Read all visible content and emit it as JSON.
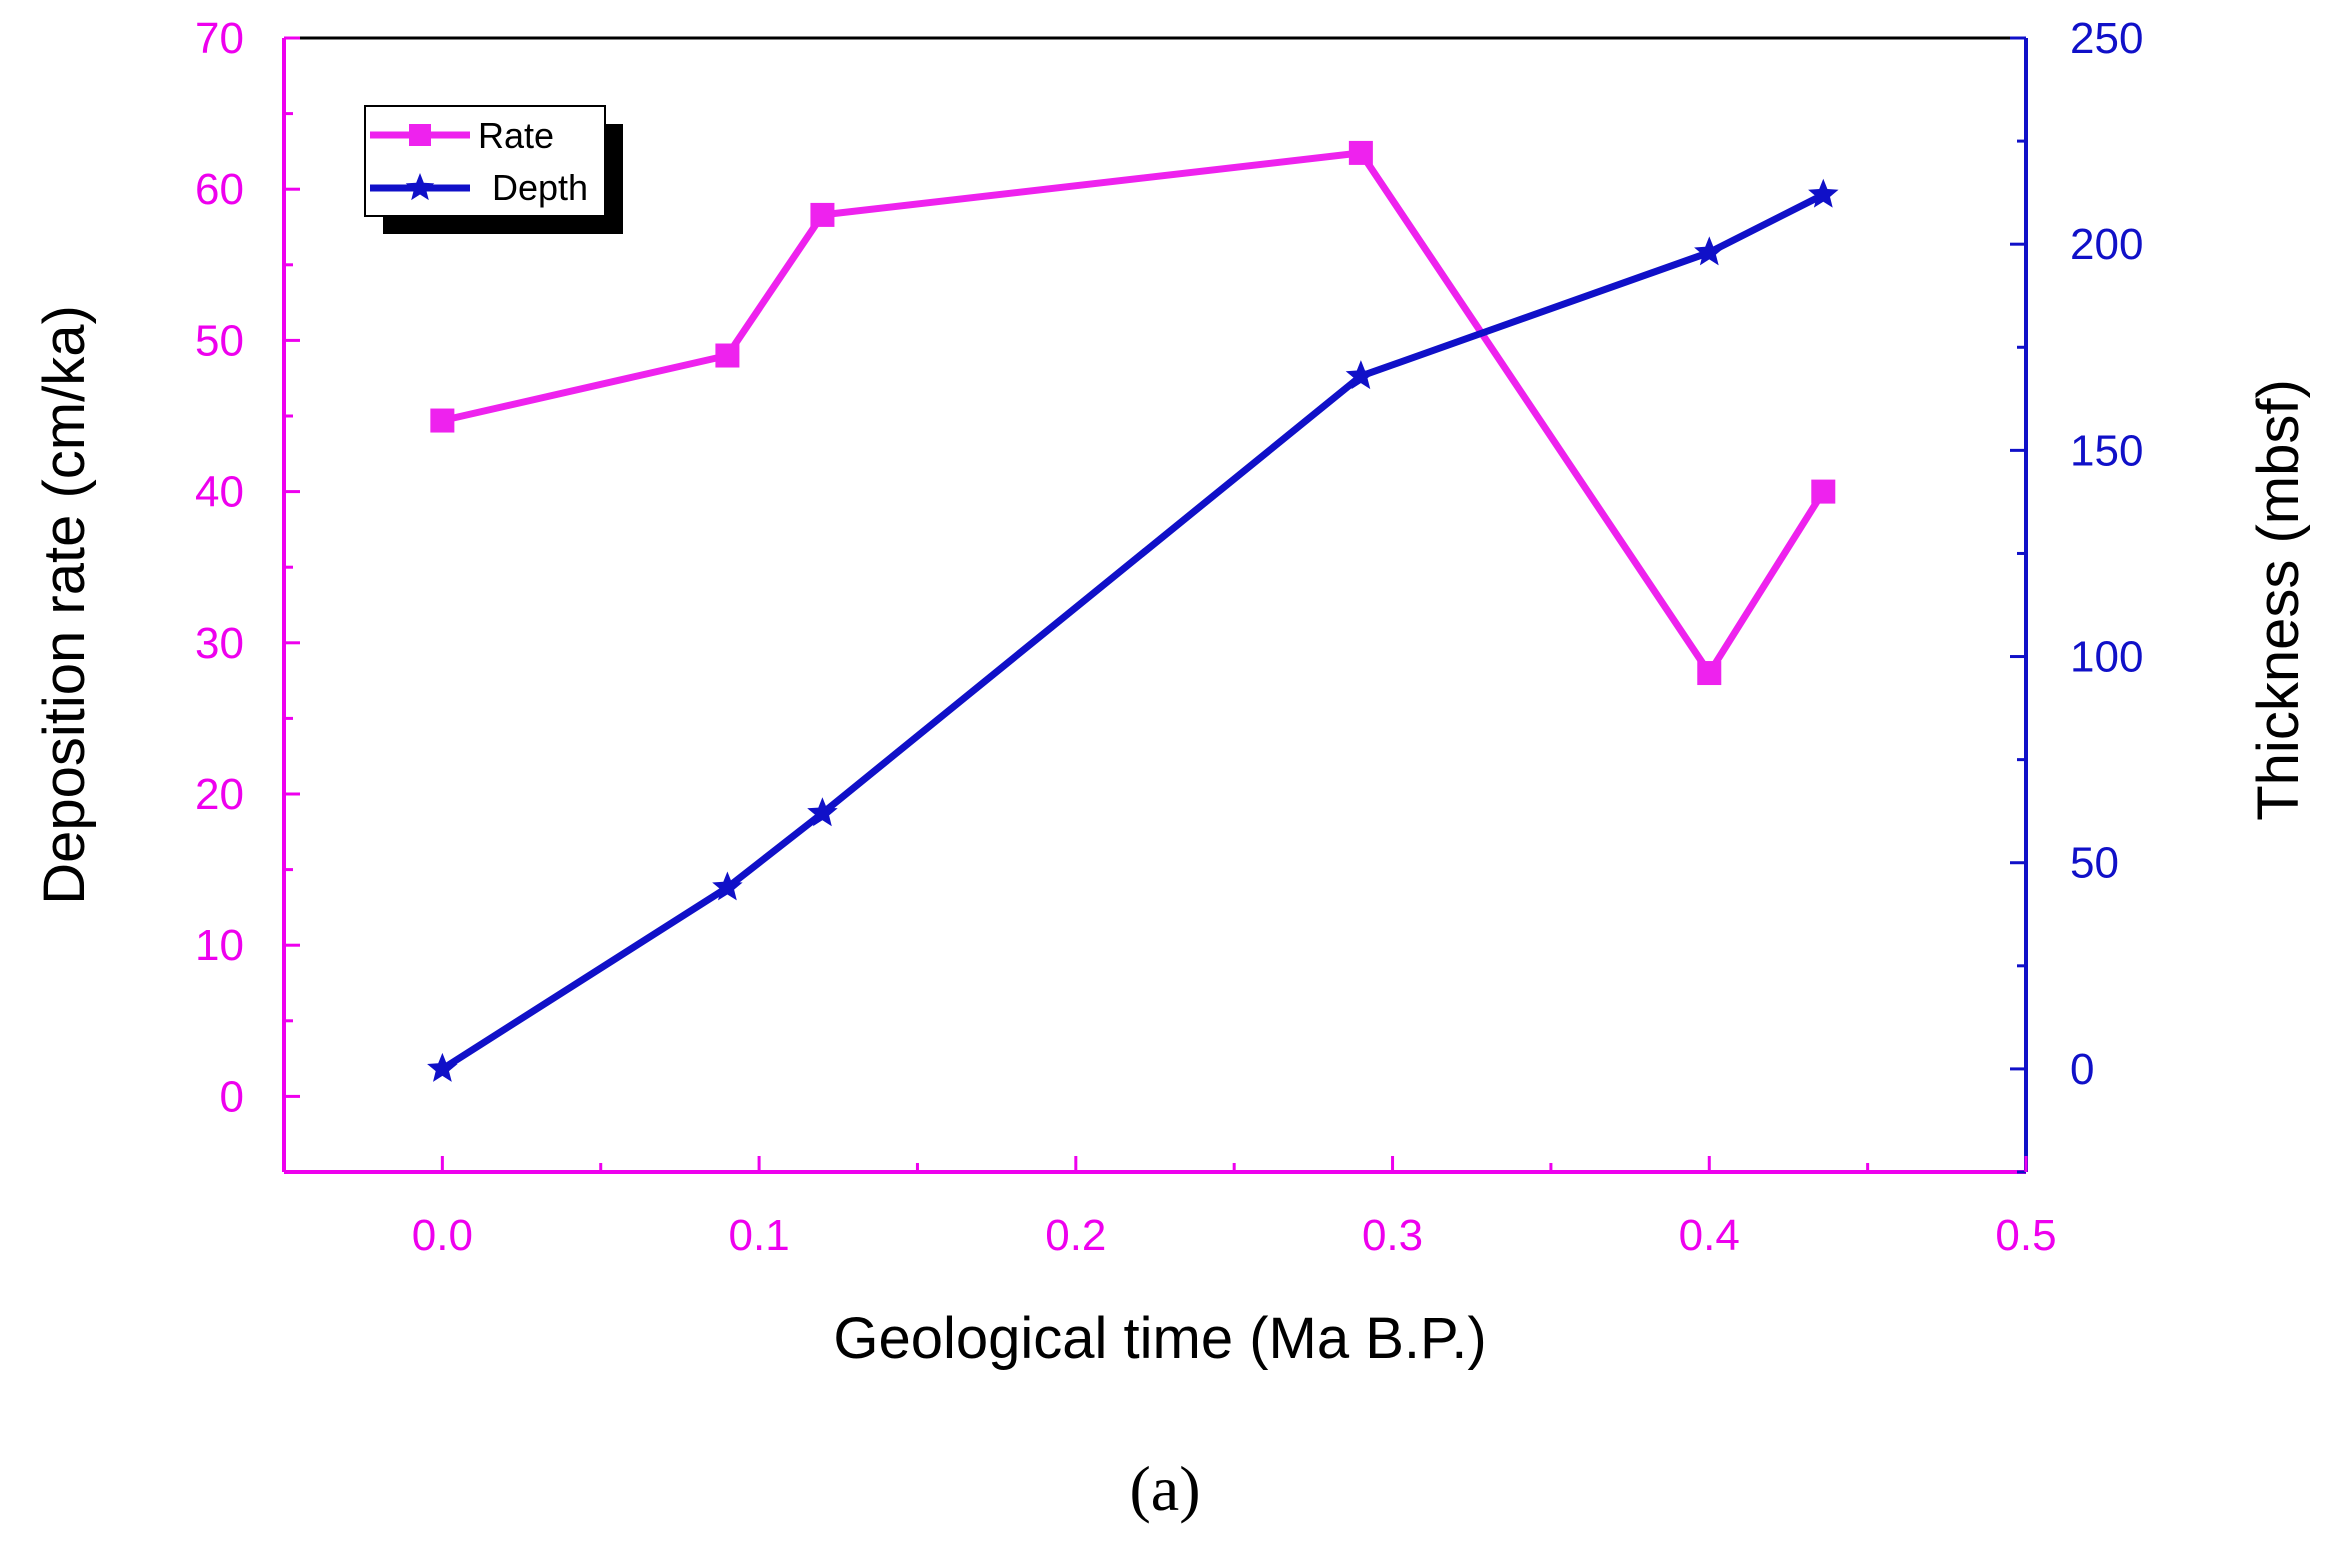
{
  "panel_label": "(a)",
  "chart_data": {
    "type": "line",
    "title": "",
    "xlabel": "Geological time (Ma B.P.)",
    "ylabel_left": "Deposition rate (cm/ka)",
    "ylabel_right": "Thickness (mbsf)",
    "xlim": [
      -0.05,
      0.5
    ],
    "xticks": [
      0.0,
      0.1,
      0.2,
      0.3,
      0.4,
      0.5
    ],
    "xtick_labels": [
      "0.0",
      "0.1",
      "0.2",
      "0.3",
      "0.4",
      "0.5"
    ],
    "ylim_left": [
      -5,
      70
    ],
    "yticks_left": [
      0,
      10,
      20,
      30,
      40,
      50,
      60,
      70
    ],
    "ytick_labels_left": [
      "0",
      "10",
      "20",
      "30",
      "40",
      "50",
      "60",
      "70"
    ],
    "ylim_right": [
      -25,
      250
    ],
    "yticks_right": [
      0,
      50,
      100,
      150,
      200,
      250
    ],
    "ytick_labels_right": [
      "0",
      "50",
      "100",
      "150",
      "200",
      "250"
    ],
    "grid": false,
    "legend_position": "top-left",
    "colors": {
      "left_axis": "#ee00ee",
      "right_axis": "#1010c8",
      "bottom_axis": "#ee00ee",
      "rate": "#ee22ee",
      "depth": "#1010c8"
    },
    "series": [
      {
        "name": "Rate",
        "axis": "left",
        "marker": "square",
        "x": [
          0.0,
          0.09,
          0.12,
          0.29,
          0.4,
          0.436
        ],
        "y": [
          44.7,
          49.0,
          58.3,
          62.4,
          28.0,
          40.0
        ]
      },
      {
        "name": "Depth",
        "axis": "right",
        "marker": "star",
        "x": [
          0.0,
          0.09,
          0.12,
          0.29,
          0.4,
          0.436
        ],
        "y": [
          0,
          44,
          62,
          168,
          198,
          212
        ]
      }
    ]
  }
}
